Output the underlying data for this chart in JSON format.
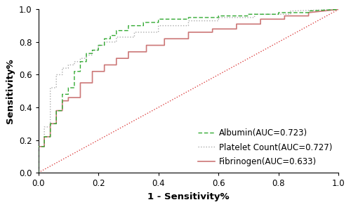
{
  "title": "",
  "xlabel": "1 - Sensitivity%",
  "ylabel": "Sensitivity%",
  "xlim": [
    0.0,
    1.0
  ],
  "ylim": [
    0.0,
    1.0
  ],
  "xticks": [
    0.0,
    0.2,
    0.4,
    0.6,
    0.8,
    1.0
  ],
  "yticks": [
    0.0,
    0.2,
    0.4,
    0.6,
    0.8,
    1.0
  ],
  "albumin_color": "#33aa33",
  "platelet_color": "#aaaaaa",
  "fibrinogen_color": "#cc7777",
  "diagonal_color": "#dd4444",
  "albumin_label": "Albumin(AUC=0.723)",
  "platelet_label": "Platelet Count(AUC=0.727)",
  "fibrinogen_label": "Fibrinogen(AUC=0.633)",
  "albumin_fpr": [
    0.0,
    0.0,
    0.02,
    0.02,
    0.04,
    0.04,
    0.06,
    0.06,
    0.08,
    0.08,
    0.1,
    0.1,
    0.12,
    0.12,
    0.14,
    0.14,
    0.16,
    0.16,
    0.18,
    0.18,
    0.2,
    0.2,
    0.22,
    0.22,
    0.24,
    0.24,
    0.26,
    0.26,
    0.3,
    0.3,
    0.35,
    0.35,
    0.4,
    0.4,
    0.5,
    0.5,
    0.6,
    0.6,
    0.7,
    0.7,
    0.8,
    0.8,
    0.9,
    0.9,
    1.0
  ],
  "albumin_tpr": [
    0.0,
    0.16,
    0.16,
    0.22,
    0.22,
    0.3,
    0.3,
    0.38,
    0.38,
    0.48,
    0.48,
    0.52,
    0.52,
    0.62,
    0.62,
    0.68,
    0.68,
    0.73,
    0.73,
    0.75,
    0.75,
    0.78,
    0.78,
    0.82,
    0.82,
    0.84,
    0.84,
    0.87,
    0.87,
    0.9,
    0.9,
    0.92,
    0.92,
    0.94,
    0.94,
    0.95,
    0.95,
    0.96,
    0.96,
    0.97,
    0.97,
    0.98,
    0.98,
    0.99,
    1.0
  ],
  "platelet_fpr": [
    0.0,
    0.0,
    0.02,
    0.02,
    0.04,
    0.04,
    0.06,
    0.06,
    0.08,
    0.08,
    0.1,
    0.1,
    0.12,
    0.12,
    0.14,
    0.14,
    0.16,
    0.16,
    0.18,
    0.18,
    0.2,
    0.2,
    0.22,
    0.22,
    0.26,
    0.26,
    0.32,
    0.32,
    0.4,
    0.4,
    0.5,
    0.5,
    0.6,
    0.6,
    0.72,
    0.72,
    0.84,
    0.84,
    1.0
  ],
  "platelet_tpr": [
    0.0,
    0.16,
    0.16,
    0.28,
    0.28,
    0.52,
    0.52,
    0.6,
    0.6,
    0.64,
    0.64,
    0.66,
    0.66,
    0.68,
    0.68,
    0.7,
    0.7,
    0.72,
    0.72,
    0.75,
    0.75,
    0.78,
    0.78,
    0.8,
    0.8,
    0.83,
    0.83,
    0.86,
    0.86,
    0.9,
    0.9,
    0.93,
    0.93,
    0.95,
    0.95,
    0.97,
    0.97,
    0.99,
    1.0
  ],
  "fibrinogen_fpr": [
    0.0,
    0.0,
    0.02,
    0.02,
    0.04,
    0.04,
    0.06,
    0.06,
    0.08,
    0.08,
    0.1,
    0.1,
    0.14,
    0.14,
    0.18,
    0.18,
    0.22,
    0.22,
    0.26,
    0.26,
    0.3,
    0.3,
    0.36,
    0.36,
    0.42,
    0.42,
    0.5,
    0.5,
    0.58,
    0.58,
    0.66,
    0.66,
    0.74,
    0.74,
    0.82,
    0.82,
    0.9,
    0.9,
    1.0
  ],
  "fibrinogen_tpr": [
    0.0,
    0.16,
    0.16,
    0.22,
    0.22,
    0.3,
    0.3,
    0.38,
    0.38,
    0.44,
    0.44,
    0.46,
    0.46,
    0.55,
    0.55,
    0.62,
    0.62,
    0.66,
    0.66,
    0.7,
    0.7,
    0.74,
    0.74,
    0.78,
    0.78,
    0.82,
    0.82,
    0.86,
    0.86,
    0.88,
    0.88,
    0.91,
    0.91,
    0.94,
    0.94,
    0.96,
    0.96,
    0.98,
    1.0
  ],
  "legend_fontsize": 8.5,
  "axis_fontsize": 9.5,
  "tick_fontsize": 8.5
}
